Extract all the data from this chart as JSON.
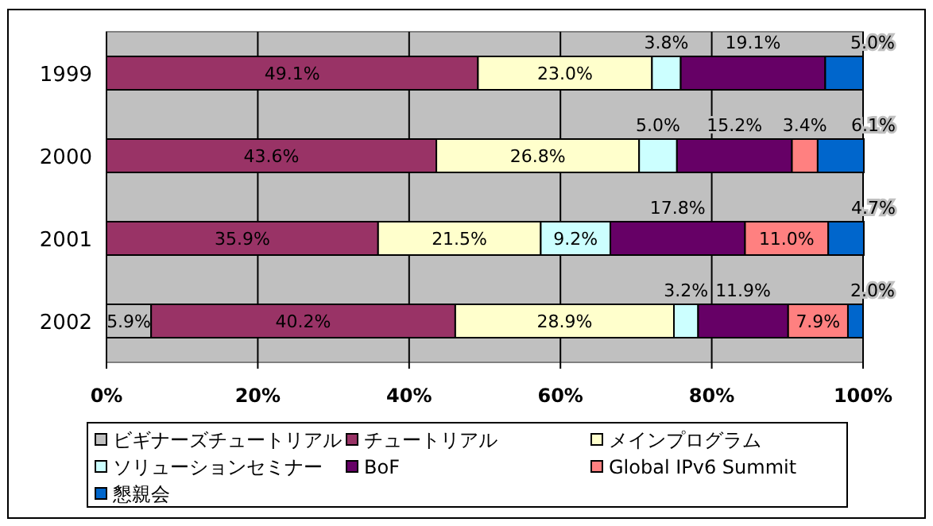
{
  "chart_data": {
    "type": "bar",
    "orientation": "horizontal",
    "stacked": true,
    "categories": [
      "1999",
      "2000",
      "2001",
      "2002"
    ],
    "series": [
      {
        "name": "ビギナーズチュートリアル",
        "color": "#c0c0c0",
        "values": [
          null,
          null,
          null,
          5.9
        ],
        "value_labels": [
          null,
          null,
          null,
          "5.9%"
        ]
      },
      {
        "name": "チュートリアル",
        "color": "#993366",
        "values": [
          49.1,
          43.6,
          35.9,
          40.2
        ],
        "value_labels": [
          "49.1%",
          "43.6%",
          "35.9%",
          "40.2%"
        ]
      },
      {
        "name": "メインプログラム",
        "color": "#ffffcc",
        "values": [
          23.0,
          26.8,
          21.5,
          28.9
        ],
        "value_labels": [
          "23.0%",
          "26.8%",
          "21.5%",
          "28.9%"
        ]
      },
      {
        "name": "ソリューションセミナー",
        "color": "#ccffff",
        "values": [
          3.8,
          5.0,
          9.2,
          3.2
        ],
        "value_labels": [
          "3.8%",
          "5.0%",
          "9.2%",
          "3.2%"
        ]
      },
      {
        "name": "BoF",
        "color": "#660066",
        "values": [
          19.1,
          15.2,
          17.8,
          11.9
        ],
        "value_labels": [
          "19.1%",
          "15.2%",
          "17.8%",
          "11.9%"
        ]
      },
      {
        "name": "Global IPv6 Summit",
        "color": "#ff8080",
        "values": [
          null,
          3.4,
          11.0,
          7.9
        ],
        "value_labels": [
          null,
          "3.4%",
          "11.0%",
          "7.9%"
        ]
      },
      {
        "name": "懇親会",
        "color": "#0066cc",
        "values": [
          5.0,
          6.1,
          4.7,
          2.0
        ],
        "value_labels": [
          "5.0%",
          "6.1%",
          "4.7%",
          "2.0%"
        ]
      }
    ],
    "xlim": [
      0,
      100
    ],
    "xticks": [
      {
        "value": 0,
        "label": "0%"
      },
      {
        "value": 20,
        "label": "20%"
      },
      {
        "value": 40,
        "label": "40%"
      },
      {
        "value": 60,
        "label": "60%"
      },
      {
        "value": 80,
        "label": "80%"
      },
      {
        "value": 100,
        "label": "100%"
      }
    ],
    "grid": "x",
    "legend": "bottom"
  }
}
